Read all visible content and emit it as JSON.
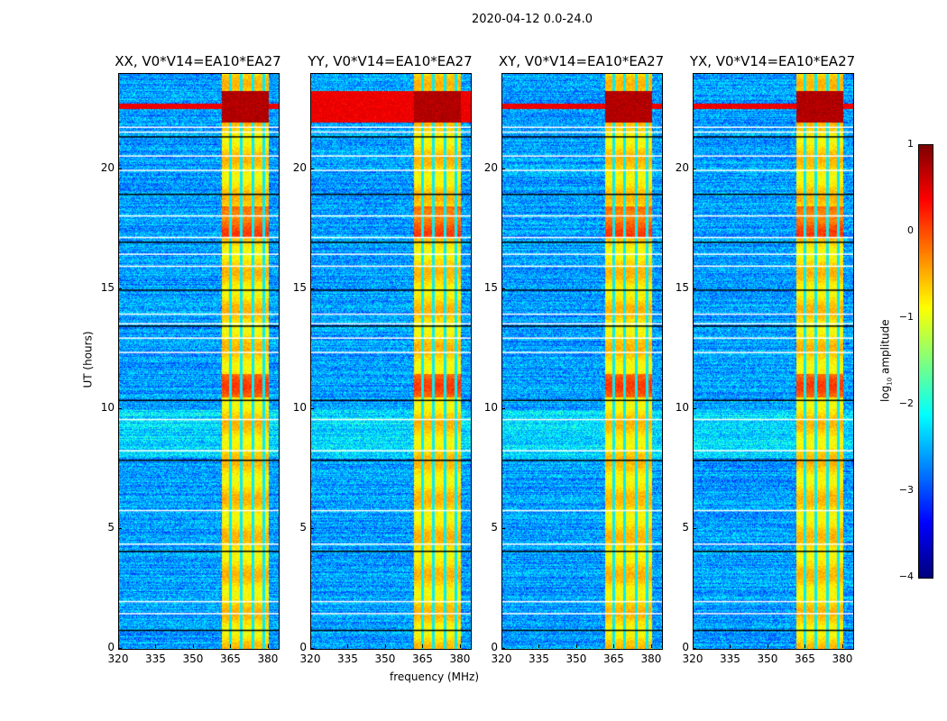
{
  "chart_data": {
    "type": "heatmap",
    "suptitle": "2020-04-12 0.0-24.0",
    "xlabel": "frequency (MHz)",
    "ylabel": "UT (hours)",
    "xlim": [
      320,
      384
    ],
    "ylim": [
      0,
      24
    ],
    "xticks": [
      "320",
      "335",
      "350",
      "365",
      "380"
    ],
    "xtick_values": [
      320,
      335,
      350,
      365,
      380
    ],
    "yticks": [
      "0",
      "5",
      "10",
      "15",
      "20"
    ],
    "ytick_values": [
      0,
      5,
      10,
      15,
      20
    ],
    "panels": [
      {
        "title": "XX, V0*V14=EA10*EA27"
      },
      {
        "title": "YY, V0*V14=EA10*EA27"
      },
      {
        "title": "XY, V0*V14=EA10*EA27"
      },
      {
        "title": "YX, V0*V14=EA10*EA27"
      }
    ],
    "colorbar": {
      "label_main": "log",
      "label_sub": "10",
      "label_rest": " amplitude",
      "range": [
        -4,
        1
      ],
      "ticks": [
        "1",
        "0",
        "−1",
        "−2",
        "−3",
        "−4"
      ],
      "tick_values": [
        1,
        0,
        -1,
        -2,
        -3,
        -4
      ],
      "colormap": "jet"
    },
    "features": {
      "background_level": -2.6,
      "rfi_band_mhz": [
        361,
        380
      ],
      "rfi_level": -0.7,
      "strong_rfi_hours": [
        22.0,
        23.3
      ],
      "flagged_hours": [
        0.8,
        1.5,
        2.0,
        4.1,
        4.4,
        5.8,
        7.9,
        8.3,
        9.6,
        10.4,
        12.4,
        13.0,
        13.5,
        13.6,
        14.0,
        15.0,
        16.0,
        16.5,
        17.0,
        17.2,
        18.1,
        19.0,
        20.0,
        20.6,
        21.4,
        21.6,
        21.8
      ]
    }
  }
}
